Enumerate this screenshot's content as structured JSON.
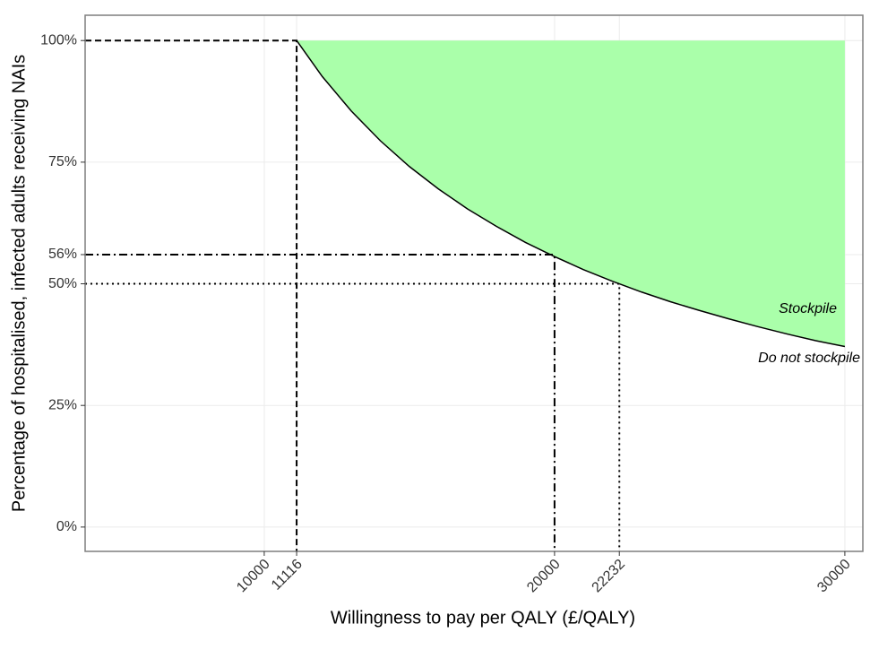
{
  "chart_data": {
    "type": "area",
    "x_label": "Willingness to pay per QALY (£/QALY)",
    "y_label": "Percentage of hospitalised, infected adults receiving NAIs",
    "x": [
      11116,
      12000,
      13000,
      14000,
      15000,
      16000,
      17000,
      18000,
      19000,
      20000,
      21000,
      22000,
      22232,
      23000,
      24000,
      25000,
      26000,
      27000,
      28000,
      29000,
      30000
    ],
    "values": [
      100,
      92.6,
      85.5,
      79.4,
      74.1,
      69.5,
      65.4,
      61.8,
      58.5,
      55.6,
      52.9,
      50.5,
      50,
      48.3,
      46.3,
      44.5,
      42.8,
      41.2,
      39.7,
      38.3,
      37.1
    ],
    "color": "#aaffaa",
    "line_color": "#000000",
    "xlim": [
      3830,
      30620
    ],
    "ylim": [
      -5,
      105.2
    ],
    "xticks": [
      10000,
      11116,
      20000,
      22232,
      30000
    ],
    "yticks": [
      {
        "value": 0,
        "label": "0%"
      },
      {
        "value": 25,
        "label": "25%"
      },
      {
        "value": 50,
        "label": "50%"
      },
      {
        "value": 56,
        "label": "56%"
      },
      {
        "value": 75,
        "label": "75%"
      },
      {
        "value": 100,
        "label": "100%"
      }
    ],
    "grid": true,
    "guides": [
      {
        "x": 11116,
        "y": 100,
        "style": "dashed"
      },
      {
        "x": 20000,
        "y": 56,
        "style": "dashdot"
      },
      {
        "x": 22232,
        "y": 50,
        "style": "dotted"
      }
    ],
    "annotations": [
      "Stockpile",
      "Do not stockpile"
    ]
  }
}
